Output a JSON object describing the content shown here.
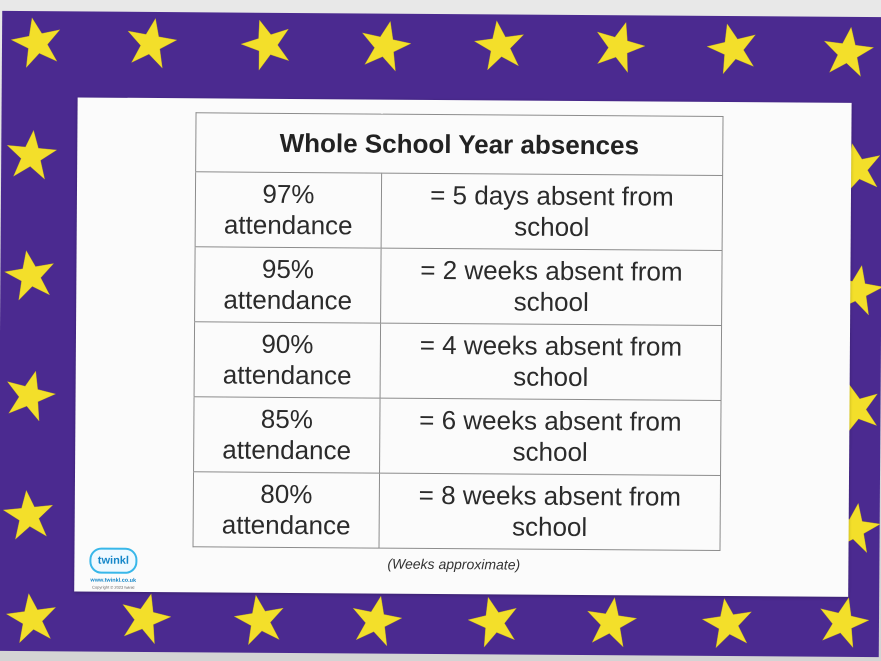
{
  "poster": {
    "title": "Whole School Year absences",
    "rows": [
      {
        "attendance_percent": "97%",
        "attendance_word": "attendance",
        "absence_line": "= 5 days absent from",
        "absence_place": "school"
      },
      {
        "attendance_percent": "95%",
        "attendance_word": "attendance",
        "absence_line": "= 2 weeks absent from",
        "absence_place": "school"
      },
      {
        "attendance_percent": "90%",
        "attendance_word": "attendance",
        "absence_line": "= 4 weeks absent from",
        "absence_place": "school"
      },
      {
        "attendance_percent": "85%",
        "attendance_word": "attendance",
        "absence_line": "= 6 weeks absent from",
        "absence_place": "school"
      },
      {
        "attendance_percent": "80%",
        "attendance_word": "attendance",
        "absence_line": "= 8 weeks absent from",
        "absence_place": "school"
      }
    ],
    "note": "(Weeks approximate)"
  },
  "logo": {
    "name": "twinkl",
    "url": "www.twinkl.co.uk",
    "copyright": "Copyright © 2023 twinkl"
  },
  "colors": {
    "border": "#4b2a90",
    "stars": "#f3df2a",
    "sheet": "#fbfbfb",
    "logo": "#1486c8"
  }
}
